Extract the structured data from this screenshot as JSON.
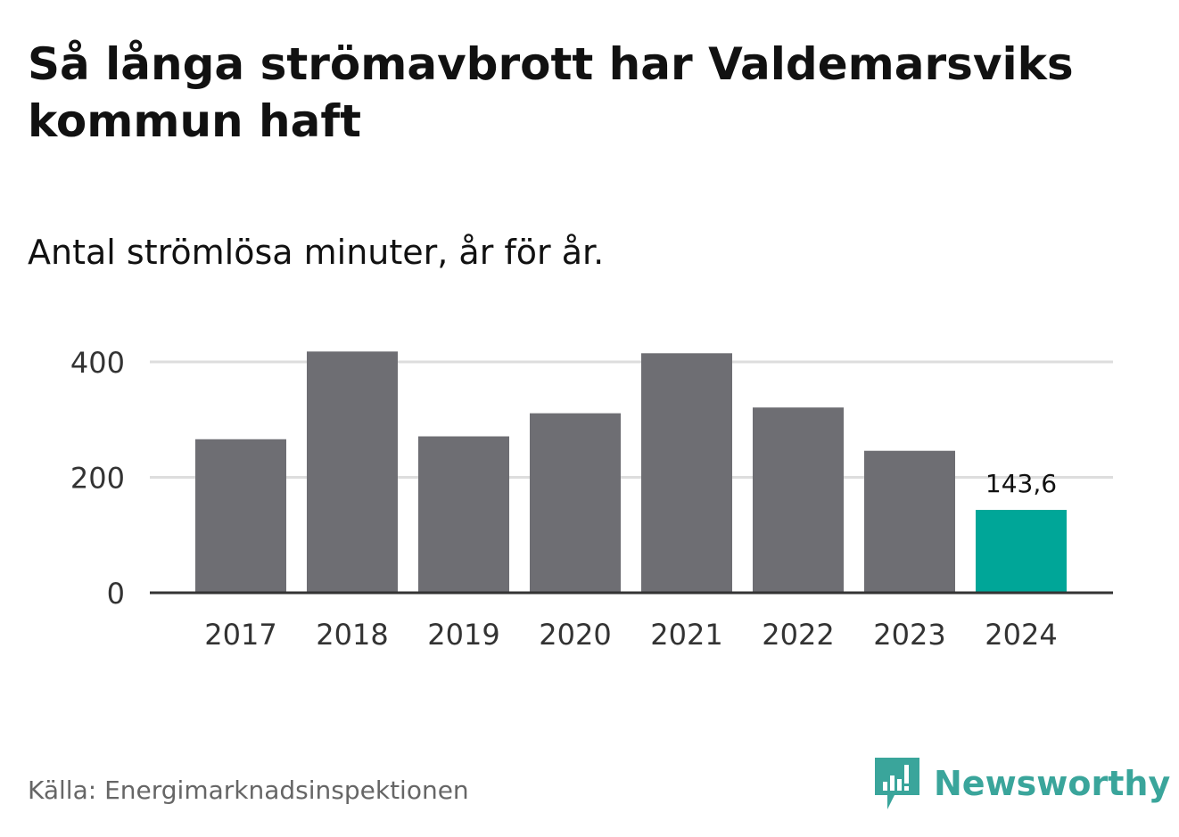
{
  "title": "Så långa strömavbrott har Valdemarsviks kommun haft",
  "subtitle": "Antal strömlösa minuter, år för år.",
  "source": "Källa: Energimarknadsinspektionen",
  "brand": "Newsworthy",
  "colors": {
    "bar": "#6e6e73",
    "highlight": "#00a698",
    "grid": "#dddddd",
    "axis": "#333333",
    "brand": "#3aa59b"
  },
  "chart_data": {
    "type": "bar",
    "categories": [
      "2017",
      "2018",
      "2019",
      "2020",
      "2021",
      "2022",
      "2023",
      "2024"
    ],
    "values": [
      266,
      418,
      271,
      311,
      415,
      321,
      246,
      143.6
    ],
    "highlight_index": 7,
    "data_label": "143,6",
    "ylim": [
      0,
      400
    ],
    "yticks": [
      0,
      200,
      400
    ],
    "ytick_labels": [
      "0",
      "200",
      "400"
    ],
    "grid": true
  }
}
